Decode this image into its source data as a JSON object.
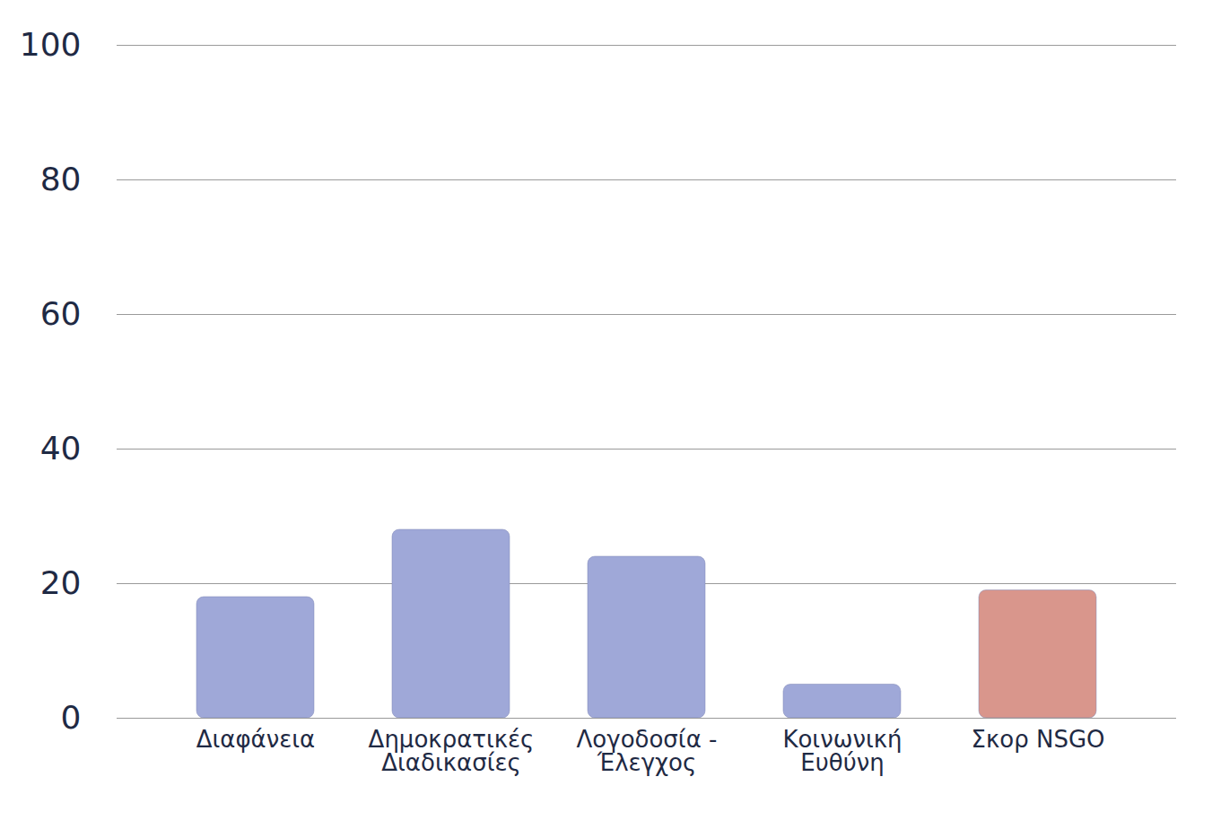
{
  "chart_data": {
    "type": "bar",
    "categories": [
      "Διαφάνεια",
      "Δημοκρατικές Διαδικασίες",
      "Λογοδοσία - Έλεγχος",
      "Κοινωνική Ευθύνη",
      "Σκορ NSGO"
    ],
    "values": [
      18,
      28,
      24,
      5,
      19
    ],
    "colors": [
      "#9fa8d8",
      "#9fa8d8",
      "#9fa8d8",
      "#9fa8d8",
      "#d9968c"
    ],
    "ylim": [
      0,
      100
    ],
    "yticks": [
      0,
      20,
      40,
      60,
      80,
      100
    ],
    "grid": true
  }
}
